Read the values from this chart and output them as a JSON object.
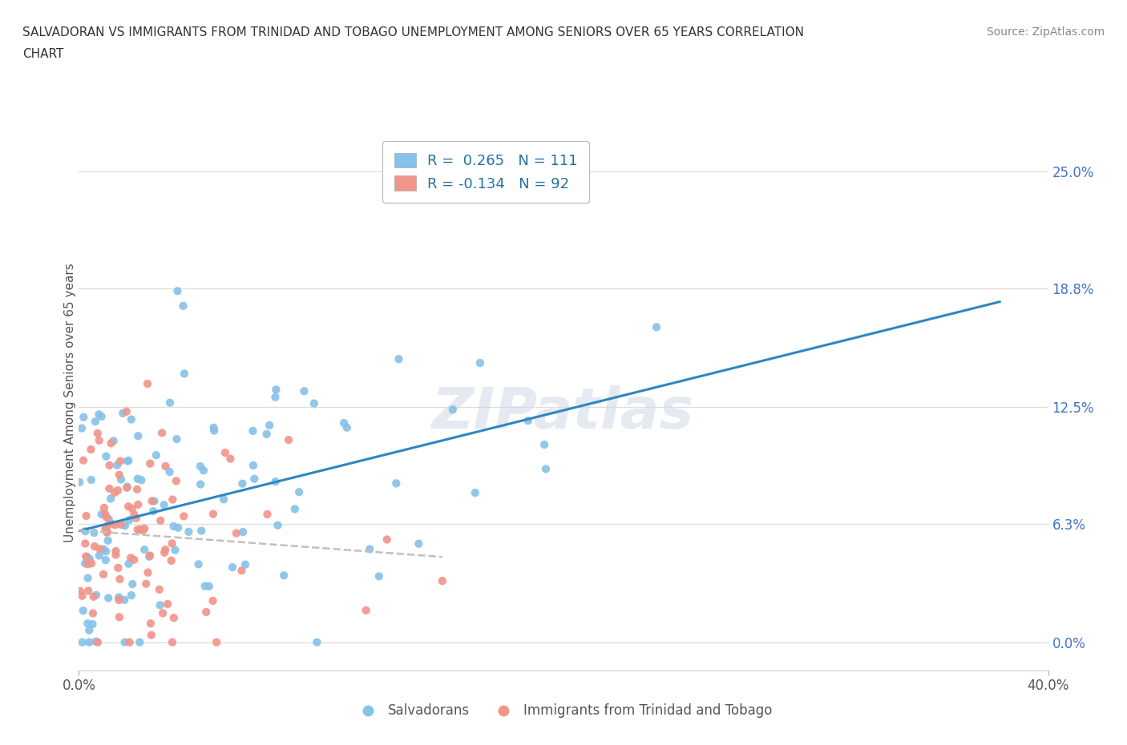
{
  "title_line1": "SALVADORAN VS IMMIGRANTS FROM TRINIDAD AND TOBAGO UNEMPLOYMENT AMONG SENIORS OVER 65 YEARS CORRELATION",
  "title_line2": "CHART",
  "source": "Source: ZipAtlas.com",
  "ylabel": "Unemployment Among Seniors over 65 years",
  "x_min": 0.0,
  "x_max": 40.0,
  "y_min": -1.5,
  "y_max": 27.0,
  "y_ticks": [
    0.0,
    6.3,
    12.5,
    18.8,
    25.0
  ],
  "x_ticks": [
    0.0,
    40.0
  ],
  "blue_color": "#85C1E9",
  "pink_color": "#F1948A",
  "blue_line_color": "#2E86C1",
  "pink_line_color": "#C0C0C0",
  "blue_R": 0.265,
  "blue_N": 111,
  "pink_R": -0.134,
  "pink_N": 92,
  "watermark": "ZIPatlas",
  "background_color": "#ffffff",
  "legend_label_blue": "Salvadorans",
  "legend_label_pink": "Immigrants from Trinidad and Tobago"
}
